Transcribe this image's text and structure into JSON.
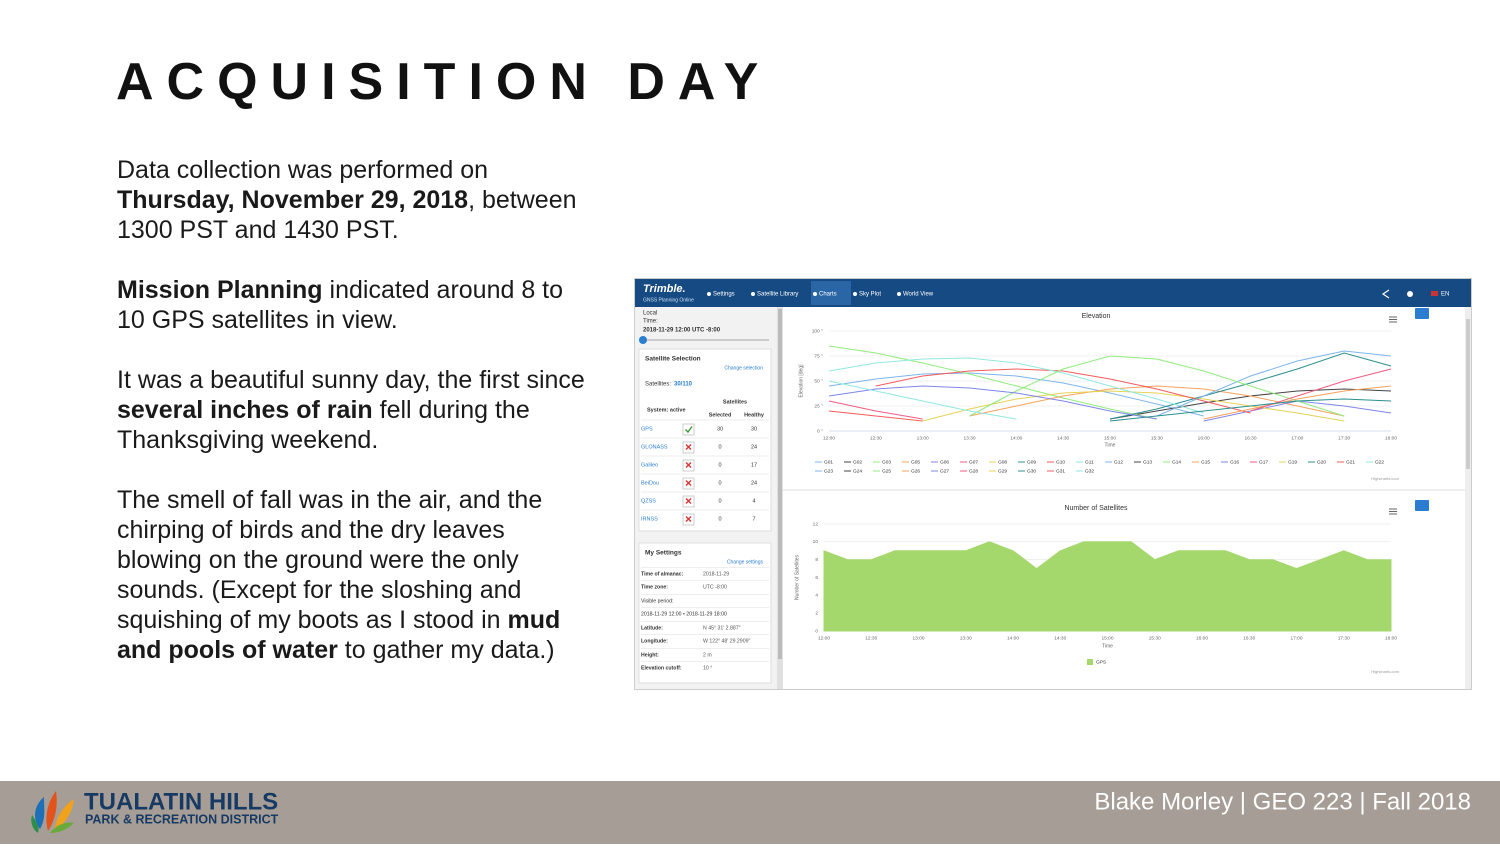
{
  "slide": {
    "title": "ACQUISITION DAY",
    "paragraphs": [
      [
        {
          "text": "Data collection was performed on "
        },
        {
          "text": "Thursday, November 29, 2018",
          "bold": true
        },
        {
          "text": ", between 1300 PST and 1430 PST."
        }
      ],
      [
        {
          "text": "Mission Planning",
          "bold": true
        },
        {
          "text": " indicated around 8 to 10 GPS satellites in view."
        }
      ],
      [
        {
          "text": "It was a beautiful sunny day, the first since "
        },
        {
          "text": "several inches of rain",
          "bold": true
        },
        {
          "text": " fell during the Thanksgiving weekend."
        }
      ],
      [
        {
          "text": "The smell of fall was in the air, and the chirping of birds and the dry leaves blowing on the ground were the only sounds. (Except for the sloshing and squishing of my boots as I stood in "
        },
        {
          "text": "mud and pools of water",
          "bold": true
        },
        {
          "text": " to gather my data.)"
        }
      ]
    ]
  },
  "app": {
    "brand": "Trimble.",
    "brand_sub": "GNSS Planning Online",
    "nav": [
      "Settings",
      "Satellite Library",
      "Charts",
      "Sky Plot",
      "World View"
    ],
    "active_nav": 2,
    "lang": "EN",
    "sidebar": {
      "local": "Local",
      "time_label": "Time:",
      "time": "2018-11-29 12:00 UTC -8:00",
      "selection_title": "Satellite Selection",
      "change_selection": "Change selection",
      "satellites_label": "Satellites:",
      "satellites_value": "30/110",
      "col_group": "Satellites",
      "system_label": "System: active",
      "col_selected": "Selected",
      "col_healthy": "Healthy",
      "systems": [
        {
          "name": "GPS",
          "active": true,
          "selected": 30,
          "healthy": 30
        },
        {
          "name": "GLONASS",
          "active": false,
          "selected": 0,
          "healthy": 24
        },
        {
          "name": "Galileo",
          "active": false,
          "selected": 0,
          "healthy": 17
        },
        {
          "name": "BeiDou",
          "active": false,
          "selected": 0,
          "healthy": 24
        },
        {
          "name": "QZSS",
          "active": false,
          "selected": 0,
          "healthy": 4
        },
        {
          "name": "IRNSS",
          "active": false,
          "selected": 0,
          "healthy": 7
        }
      ],
      "settings_title": "My Settings",
      "change_settings": "Change settings",
      "settings": [
        {
          "label": "Time of almanac:",
          "value": "2018-11-29"
        },
        {
          "label": "Time zone:",
          "value": "UTC -8:00"
        },
        {
          "label": "Visible period:",
          "value": ""
        },
        {
          "label": "2018-11-29 12:00 • 2018-11-29 18:00",
          "value": ""
        },
        {
          "label": "Latitude:",
          "value": "N 45° 31' 2.887\""
        },
        {
          "label": "Longitude:",
          "value": "W 122° 48' 29.2909\""
        },
        {
          "label": "Height:",
          "value": "2 m"
        },
        {
          "label": "Elevation cutoff:",
          "value": "10 °"
        }
      ]
    }
  },
  "chart_data": [
    {
      "type": "line",
      "title": "Elevation",
      "y_label": "Elevation [deg]",
      "x_label": "Time",
      "credit": "Highcharts.com",
      "categories": [
        "12:00",
        "12:30",
        "13:00",
        "13:30",
        "14:00",
        "14:30",
        "15:00",
        "15:30",
        "16:00",
        "16:30",
        "17:00",
        "17:30",
        "18:00"
      ],
      "ylim": [
        0,
        100
      ],
      "yticks": [
        {
          "value": 0,
          "label": "0 °"
        },
        {
          "value": 25,
          "label": "25 °"
        },
        {
          "value": 50,
          "label": "50 °"
        },
        {
          "value": 75,
          "label": "75 °"
        },
        {
          "value": 100,
          "label": "100 °"
        }
      ],
      "series": [
        {
          "name": "G01",
          "color": "#7cb5ec",
          "values": [
            45,
            52,
            57,
            58,
            55,
            48,
            38,
            27,
            15,
            null,
            null,
            null,
            null
          ]
        },
        {
          "name": "G02",
          "color": "#434348",
          "values": [
            null,
            null,
            null,
            null,
            null,
            null,
            12,
            20,
            28,
            35,
            40,
            42,
            40
          ]
        },
        {
          "name": "G03",
          "color": "#90ed7d",
          "values": [
            85,
            78,
            68,
            57,
            45,
            33,
            22,
            12,
            null,
            null,
            null,
            null,
            null
          ]
        },
        {
          "name": "G05",
          "color": "#f7a35c",
          "values": [
            null,
            null,
            null,
            15,
            25,
            35,
            42,
            45,
            42,
            35,
            25,
            15,
            null
          ]
        },
        {
          "name": "G06",
          "color": "#8085e9",
          "values": [
            null,
            null,
            null,
            null,
            null,
            null,
            null,
            null,
            10,
            20,
            30,
            25,
            18
          ]
        },
        {
          "name": "G07",
          "color": "#f15c80",
          "values": [
            30,
            20,
            12,
            null,
            null,
            null,
            null,
            null,
            null,
            null,
            null,
            null,
            null
          ]
        },
        {
          "name": "G08",
          "color": "#e4d354",
          "values": [
            null,
            null,
            10,
            22,
            32,
            38,
            40,
            38,
            32,
            25,
            18,
            10,
            null
          ]
        },
        {
          "name": "G09",
          "color": "#2b908f",
          "values": [
            null,
            null,
            null,
            null,
            null,
            null,
            12,
            22,
            35,
            48,
            62,
            78,
            65
          ]
        },
        {
          "name": "G10",
          "color": "#f45b5b",
          "values": [
            null,
            45,
            55,
            60,
            62,
            60,
            52,
            42,
            30,
            18,
            null,
            null,
            null
          ]
        },
        {
          "name": "G11",
          "color": "#91e8e1",
          "values": [
            60,
            68,
            72,
            73,
            68,
            58,
            45,
            32,
            18,
            null,
            null,
            null,
            null
          ]
        },
        {
          "name": "G12",
          "color": "#7cb5ec",
          "values": [
            null,
            null,
            null,
            null,
            null,
            null,
            null,
            15,
            35,
            55,
            70,
            80,
            75
          ]
        },
        {
          "name": "G13",
          "color": "#434348",
          "values": [
            null,
            null,
            null,
            null,
            null,
            null,
            null,
            null,
            null,
            null,
            null,
            null,
            null
          ]
        },
        {
          "name": "G14",
          "color": "#90ed7d",
          "values": [
            null,
            null,
            null,
            15,
            40,
            62,
            75,
            72,
            60,
            45,
            30,
            15,
            null
          ]
        },
        {
          "name": "G15",
          "color": "#f7a35c",
          "values": [
            null,
            null,
            null,
            null,
            null,
            null,
            null,
            null,
            12,
            22,
            32,
            40,
            45
          ]
        },
        {
          "name": "G16",
          "color": "#8085e9",
          "values": [
            35,
            42,
            45,
            43,
            38,
            30,
            20,
            12,
            null,
            null,
            null,
            null,
            null
          ]
        },
        {
          "name": "G17",
          "color": "#f15c80",
          "values": [
            null,
            null,
            null,
            null,
            null,
            null,
            null,
            null,
            null,
            20,
            35,
            50,
            62
          ]
        },
        {
          "name": "G19",
          "color": "#e4d354",
          "values": [
            null,
            null,
            null,
            null,
            null,
            null,
            null,
            null,
            null,
            null,
            null,
            null,
            null
          ]
        },
        {
          "name": "G20",
          "color": "#2b908f",
          "values": [
            null,
            null,
            null,
            null,
            null,
            null,
            10,
            15,
            20,
            25,
            30,
            32,
            30
          ]
        },
        {
          "name": "G21",
          "color": "#f45b5b",
          "values": [
            20,
            15,
            10,
            null,
            null,
            null,
            null,
            null,
            null,
            null,
            null,
            null,
            null
          ]
        },
        {
          "name": "G22",
          "color": "#91e8e1",
          "values": [
            50,
            40,
            30,
            20,
            12,
            null,
            null,
            null,
            null,
            null,
            null,
            null,
            null
          ]
        },
        {
          "name": "G23",
          "color": "#7cb5ec",
          "values": [
            null,
            null,
            null,
            null,
            null,
            null,
            null,
            null,
            null,
            null,
            null,
            null,
            null
          ]
        },
        {
          "name": "G24",
          "color": "#434348",
          "values": [
            null,
            null,
            null,
            null,
            null,
            null,
            null,
            null,
            null,
            null,
            null,
            null,
            null
          ]
        },
        {
          "name": "G25",
          "color": "#90ed7d",
          "values": [
            null,
            null,
            null,
            null,
            null,
            null,
            null,
            null,
            null,
            null,
            null,
            null,
            null
          ]
        },
        {
          "name": "G26",
          "color": "#f7a35c",
          "values": [
            null,
            null,
            null,
            null,
            null,
            null,
            null,
            null,
            null,
            null,
            null,
            null,
            null
          ]
        },
        {
          "name": "G27",
          "color": "#8085e9",
          "values": [
            null,
            null,
            null,
            null,
            null,
            null,
            null,
            null,
            null,
            null,
            null,
            null,
            null
          ]
        },
        {
          "name": "G28",
          "color": "#f15c80",
          "values": [
            null,
            null,
            null,
            null,
            null,
            null,
            null,
            null,
            null,
            null,
            null,
            null,
            null
          ]
        },
        {
          "name": "G29",
          "color": "#e4d354",
          "values": [
            null,
            null,
            null,
            null,
            null,
            null,
            null,
            null,
            null,
            null,
            null,
            null,
            null
          ]
        },
        {
          "name": "G30",
          "color": "#2b908f",
          "values": [
            null,
            null,
            null,
            null,
            null,
            null,
            null,
            null,
            null,
            null,
            null,
            null,
            null
          ]
        },
        {
          "name": "G31",
          "color": "#f45b5b",
          "values": [
            null,
            null,
            null,
            null,
            null,
            null,
            null,
            null,
            null,
            null,
            null,
            null,
            null
          ]
        },
        {
          "name": "G32",
          "color": "#91e8e1",
          "values": [
            null,
            null,
            null,
            null,
            null,
            null,
            null,
            null,
            null,
            null,
            null,
            null,
            null
          ]
        }
      ]
    },
    {
      "type": "area",
      "title": "Number of Satellites",
      "y_label": "Number of Satellites",
      "x_label": "Time",
      "credit": "Highcharts.com",
      "categories": [
        "12:00",
        null,
        "12:30",
        null,
        "13:00",
        null,
        "13:30",
        null,
        "14:00",
        null,
        "14:30",
        null,
        "15:00",
        null,
        "15:30",
        null,
        "16:00",
        null,
        "16:30",
        null,
        "17:00",
        null,
        "17:30",
        null,
        "18:00"
      ],
      "ylim": [
        0,
        12
      ],
      "yticks": [
        0,
        2,
        4,
        6,
        8,
        10,
        12
      ],
      "series": [
        {
          "name": "GPS",
          "color": "#a5d86c",
          "values": [
            9,
            8,
            8,
            9,
            9,
            9,
            9,
            10,
            9,
            7,
            9,
            10,
            10,
            10,
            8,
            9,
            9,
            9,
            8,
            8,
            7,
            8,
            9,
            8,
            8
          ]
        }
      ]
    }
  ],
  "footer": {
    "org": "TUALATIN HILLS",
    "org_sub": "PARK & RECREATION DISTRICT",
    "credit": "Blake Morley | GEO 223 | Fall 2018"
  }
}
